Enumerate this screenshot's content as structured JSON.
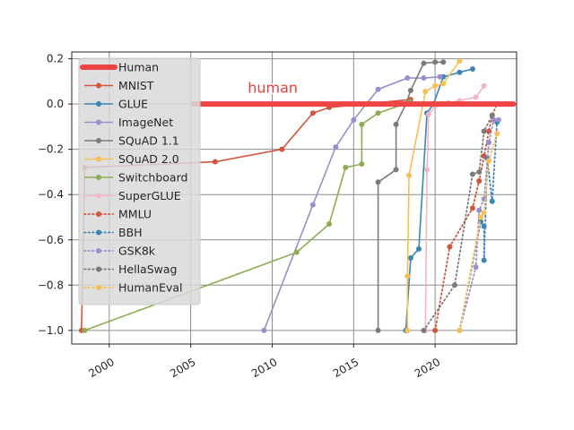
{
  "chart_data": {
    "type": "line",
    "title": "",
    "xlabel": "",
    "ylabel": "",
    "xlim": [
      1997.7,
      2025
    ],
    "ylim": [
      -1.06,
      0.23
    ],
    "grid": true,
    "legend_position": "upper-left",
    "x_ticks": [
      2000,
      2005,
      2010,
      2015,
      2020
    ],
    "x_tick_labels": [
      "2000",
      "2005",
      "2010",
      "2015",
      "2020"
    ],
    "y_ticks": [
      0.2,
      0.0,
      -0.2,
      -0.4,
      -0.6,
      -0.8,
      -1.0
    ],
    "y_tick_labels": [
      "0.2",
      "0.0",
      "−0.2",
      "−0.4",
      "−0.6",
      "−0.8",
      "−1.0"
    ],
    "human_line": {
      "name": "Human",
      "y": 0.0,
      "color": "#ee4444"
    },
    "annotation": {
      "text": "human",
      "x": 2008.5,
      "y": 0.05
    },
    "series": [
      {
        "name": "MNIST",
        "color": "#d2553c",
        "style": "solid",
        "x": [
          1998.3,
          1998.5,
          2006.5,
          2010.6,
          2012.5,
          2013.5,
          2018.5
        ],
        "y": [
          -1.0,
          -0.28,
          -0.255,
          -0.2,
          -0.04,
          -0.015,
          0.02
        ]
      },
      {
        "name": "GLUE",
        "color": "#3b85b5",
        "style": "solid",
        "x": [
          2018.2,
          2018.5,
          2019.0,
          2019.5,
          2019.9,
          2020.5,
          2021.5,
          2022.3
        ],
        "y": [
          -1.0,
          -0.68,
          -0.64,
          -0.04,
          0.0,
          0.12,
          0.14,
          0.155
        ]
      },
      {
        "name": "ImageNet",
        "color": "#9a8fcb",
        "style": "solid",
        "x": [
          2009.5,
          2012.5,
          2013.9,
          2015.0,
          2016.5,
          2018.3,
          2019.3,
          2020.3
        ],
        "y": [
          -1.0,
          -0.445,
          -0.19,
          -0.07,
          0.065,
          0.115,
          0.115,
          0.12
        ]
      },
      {
        "name": "SQuAD 1.1",
        "color": "#7a7a7a",
        "style": "solid",
        "x": [
          2016.5,
          2016.5,
          2017.6,
          2017.6,
          2018.2,
          2018.5,
          2019.3,
          2020.0,
          2020.5
        ],
        "y": [
          -1.0,
          -0.345,
          -0.29,
          -0.09,
          0.0,
          0.06,
          0.18,
          0.185,
          0.185
        ]
      },
      {
        "name": "SQuAD 2.0",
        "color": "#f6bf55",
        "style": "solid",
        "x": [
          2018.3,
          2018.3,
          2018.4,
          2019.4,
          2020.0,
          2020.5,
          2021.5
        ],
        "y": [
          -1.0,
          -0.76,
          -0.315,
          0.055,
          0.08,
          0.09,
          0.19
        ]
      },
      {
        "name": "Switchboard",
        "color": "#8aad4f",
        "style": "solid",
        "x": [
          1998.5,
          2011.5,
          2013.5,
          2014.5,
          2015.5,
          2015.5,
          2016.5,
          2018.5
        ],
        "y": [
          -1.0,
          -0.655,
          -0.53,
          -0.28,
          -0.265,
          -0.09,
          -0.04,
          0.01
        ]
      },
      {
        "name": "SuperGLUE",
        "color": "#f2b6c5",
        "style": "solid",
        "x": [
          2019.4,
          2019.5,
          2019.6,
          2020.0,
          2020.8,
          2021.5,
          2022.5,
          2023.0
        ],
        "y": [
          -1.0,
          -0.29,
          -0.045,
          -0.01,
          0.005,
          0.015,
          0.03,
          0.08
        ]
      },
      {
        "name": "MMLU",
        "color": "#d2553c",
        "style": "dotted",
        "x": [
          2020.0,
          2020.9,
          2022.3,
          2022.7,
          2023.0,
          2023.3,
          2023.5,
          2023.8
        ],
        "y": [
          -1.0,
          -0.63,
          -0.46,
          -0.34,
          -0.23,
          -0.12,
          -0.05,
          0.0
        ]
      },
      {
        "name": "BBH",
        "color": "#3b85b5",
        "style": "dotted",
        "x": [
          2021.5,
          2022.8,
          2023.0,
          2023.0,
          2023.2,
          2023.5,
          2023.8
        ],
        "y": [
          -1.0,
          -0.52,
          -0.54,
          -0.69,
          -0.24,
          -0.43,
          -0.08
        ]
      },
      {
        "name": "GSK8k",
        "color": "#9a8fcb",
        "style": "dotted",
        "x": [
          2021.5,
          2022.5,
          2022.7,
          2023.0,
          2023.3,
          2023.6,
          2023.9
        ],
        "y": [
          -1.0,
          -0.72,
          -0.47,
          -0.42,
          -0.17,
          -0.07,
          -0.07
        ]
      },
      {
        "name": "HellaSwag",
        "color": "#7a7a7a",
        "style": "dotted",
        "x": [
          2019.3,
          2021.2,
          2022.3,
          2022.7,
          2023.0,
          2023.5
        ],
        "y": [
          -1.0,
          -0.8,
          -0.31,
          -0.3,
          -0.12,
          -0.05
        ]
      },
      {
        "name": "HumanEval",
        "color": "#f6bf55",
        "style": "dotted",
        "x": [
          2021.5,
          2022.8,
          2023.0,
          2023.3,
          2023.8
        ],
        "y": [
          -1.0,
          -0.5,
          -0.48,
          -0.25,
          -0.13
        ]
      }
    ],
    "legend": [
      "Human",
      "MNIST",
      "GLUE",
      "ImageNet",
      "SQuAD 1.1",
      "SQuAD 2.0",
      "Switchboard",
      "SuperGLUE",
      "MMLU",
      "BBH",
      "GSK8k",
      "HellaSwag",
      "HumanEval"
    ]
  }
}
